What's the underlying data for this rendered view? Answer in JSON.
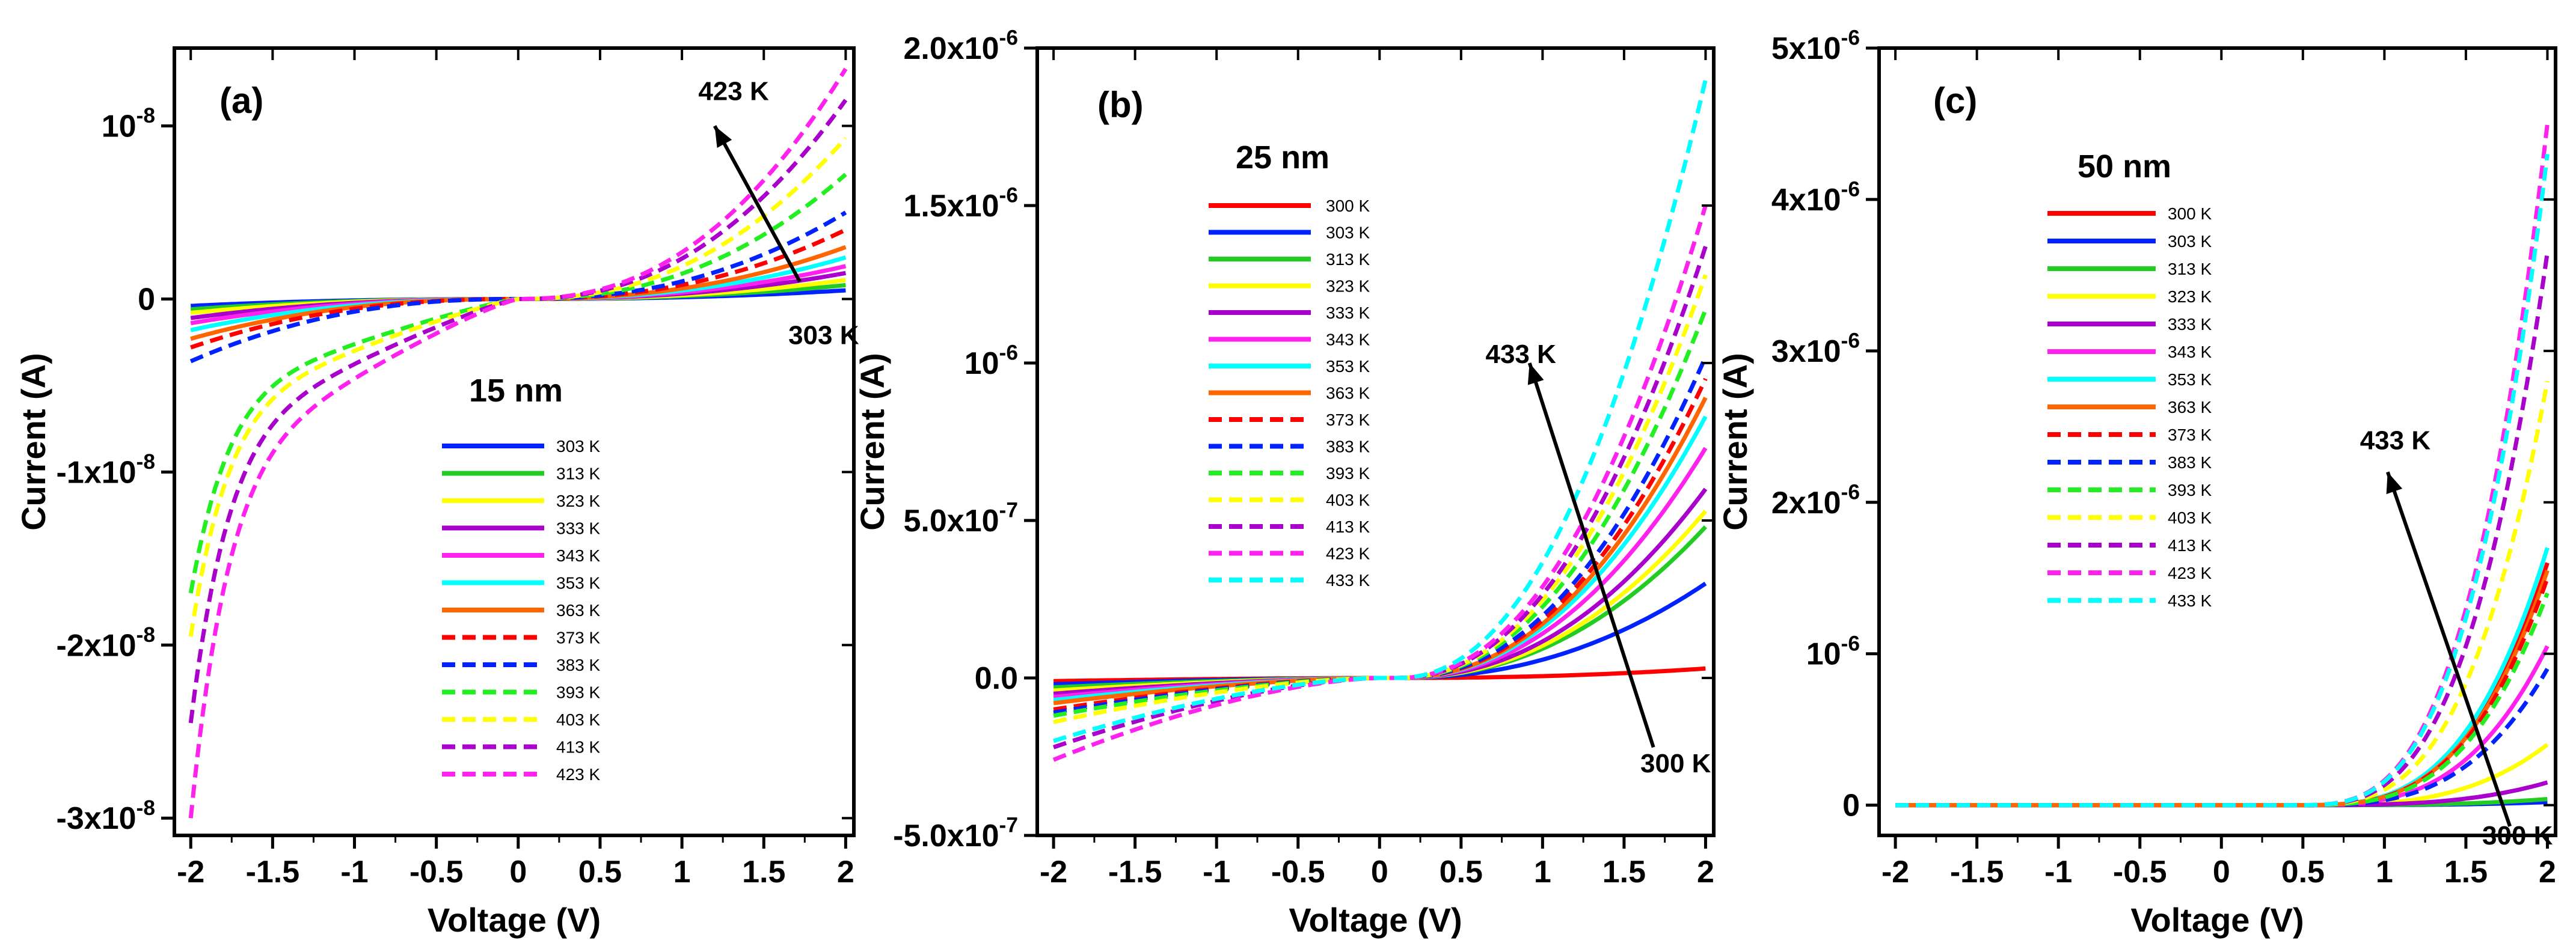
{
  "chart_data": [
    {
      "type": "line",
      "panel_label": "(a)",
      "thickness_label": "15 nm",
      "xlabel": "Voltage (V)",
      "ylabel": "Current (A)",
      "xlim": [
        -2.1,
        2.05
      ],
      "ylim": [
        -3.1e-08,
        1.45e-08
      ],
      "xticks": [
        -2,
        -1.5,
        -1,
        -0.5,
        0,
        0.5,
        1,
        1.5,
        2
      ],
      "xtick_labels": [
        "-2",
        "-1.5",
        "-1",
        "-0.5",
        "0",
        "0.5",
        "1",
        "1.5",
        "2"
      ],
      "yticks": [
        1e-08,
        0,
        -1e-08,
        -2e-08,
        -3e-08
      ],
      "ytick_labels": [
        "10^-8",
        "0",
        "-1x10^-8",
        "-2x10^-8",
        "-3x10^-8"
      ],
      "annotations": [
        {
          "text": "423 K",
          "x": 1.1,
          "y": 1.15e-08
        },
        {
          "text": "303 K",
          "x": 1.65,
          "y": -2.6e-09
        }
      ],
      "arrow": {
        "from": [
          1.72,
          1e-09
        ],
        "to": [
          1.2,
          1e-08
        ]
      },
      "legend": "lower-center",
      "series": [
        {
          "name": "303 K",
          "color": "#0022ff",
          "dash": false,
          "pos_end": 5e-10,
          "neg_end": -4e-10
        },
        {
          "name": "313 K",
          "color": "#22cc22",
          "dash": false,
          "pos_end": 8e-10,
          "neg_end": -6e-10
        },
        {
          "name": "323 K",
          "color": "#ffff00",
          "dash": false,
          "pos_end": 1.1e-09,
          "neg_end": -8e-10
        },
        {
          "name": "333 K",
          "color": "#aa00cc",
          "dash": false,
          "pos_end": 1.5e-09,
          "neg_end": -1.1e-09
        },
        {
          "name": "343 K",
          "color": "#ff22ee",
          "dash": false,
          "pos_end": 1.9e-09,
          "neg_end": -1.4e-09
        },
        {
          "name": "353 K",
          "color": "#00ffff",
          "dash": false,
          "pos_end": 2.4e-09,
          "neg_end": -1.8e-09
        },
        {
          "name": "363 K",
          "color": "#ff6600",
          "dash": false,
          "pos_end": 3e-09,
          "neg_end": -2.3e-09
        },
        {
          "name": "373 K",
          "color": "#ff0000",
          "dash": true,
          "pos_end": 4e-09,
          "neg_end": -2.8e-09
        },
        {
          "name": "383 K",
          "color": "#0022ff",
          "dash": true,
          "pos_end": 5e-09,
          "neg_end": -3.6e-09
        },
        {
          "name": "393 K",
          "color": "#22ee22",
          "dash": true,
          "pos_end": 7.2e-09,
          "neg_end": -1.7e-08
        },
        {
          "name": "403 K",
          "color": "#ffff00",
          "dash": true,
          "pos_end": 9.3e-09,
          "neg_end": -1.95e-08
        },
        {
          "name": "413 K",
          "color": "#aa00cc",
          "dash": true,
          "pos_end": 1.15e-08,
          "neg_end": -2.45e-08
        },
        {
          "name": "423 K",
          "color": "#ff22ee",
          "dash": true,
          "pos_end": 1.33e-08,
          "neg_end": -3e-08
        }
      ]
    },
    {
      "type": "line",
      "panel_label": "(b)",
      "thickness_label": "25 nm",
      "xlabel": "Voltage (V)",
      "ylabel": "Current (A)",
      "xlim": [
        -2.1,
        2.05
      ],
      "ylim": [
        -5e-07,
        2e-06
      ],
      "xticks": [
        -2,
        -1.5,
        -1,
        -0.5,
        0,
        0.5,
        1,
        1.5,
        2
      ],
      "xtick_labels": [
        "-2",
        "-1.5",
        "-1",
        "-0.5",
        "0",
        "0.5",
        "1",
        "1.5",
        "2"
      ],
      "yticks": [
        2e-06,
        1.5e-06,
        1e-06,
        5e-07,
        0,
        -5e-07
      ],
      "ytick_labels": [
        "2.0x10^-6",
        "1.5x10^-6",
        "10^-6",
        "5.0x10^-7",
        "0.0",
        "-5.0x10^-7"
      ],
      "annotations": [
        {
          "text": "433 K",
          "x": 0.65,
          "y": 1e-06
        },
        {
          "text": "300 K",
          "x": 1.6,
          "y": -3e-07
        }
      ],
      "arrow": {
        "from": [
          1.68,
          -2.2e-07
        ],
        "to": [
          0.92,
          1e-06
        ]
      },
      "legend": "top-left",
      "series": [
        {
          "name": "300 K",
          "color": "#ff0000",
          "dash": false,
          "pos_end": 3e-08,
          "neg_end": -1e-08
        },
        {
          "name": "303 K",
          "color": "#0022ff",
          "dash": false,
          "pos_end": 3e-07,
          "neg_end": -2e-08
        },
        {
          "name": "313 K",
          "color": "#22cc22",
          "dash": false,
          "pos_end": 4.8e-07,
          "neg_end": -3e-08
        },
        {
          "name": "323 K",
          "color": "#ffff00",
          "dash": false,
          "pos_end": 5.3e-07,
          "neg_end": -4e-08
        },
        {
          "name": "333 K",
          "color": "#aa00cc",
          "dash": false,
          "pos_end": 6e-07,
          "neg_end": -5e-08
        },
        {
          "name": "343 K",
          "color": "#ff22ee",
          "dash": false,
          "pos_end": 7.3e-07,
          "neg_end": -6e-08
        },
        {
          "name": "353 K",
          "color": "#00ffff",
          "dash": false,
          "pos_end": 8.3e-07,
          "neg_end": -7e-08
        },
        {
          "name": "363 K",
          "color": "#ff6600",
          "dash": false,
          "pos_end": 8.9e-07,
          "neg_end": -8e-08
        },
        {
          "name": "373 K",
          "color": "#ff0000",
          "dash": true,
          "pos_end": 9.5e-07,
          "neg_end": -1e-07
        },
        {
          "name": "383 K",
          "color": "#0022ff",
          "dash": true,
          "pos_end": 1.02e-06,
          "neg_end": -1.1e-07
        },
        {
          "name": "393 K",
          "color": "#22ee22",
          "dash": true,
          "pos_end": 1.17e-06,
          "neg_end": -1.2e-07
        },
        {
          "name": "403 K",
          "color": "#ffff00",
          "dash": true,
          "pos_end": 1.28e-06,
          "neg_end": -1.4e-07
        },
        {
          "name": "413 K",
          "color": "#aa00cc",
          "dash": true,
          "pos_end": 1.37e-06,
          "neg_end": -2.2e-07
        },
        {
          "name": "423 K",
          "color": "#ff22ee",
          "dash": true,
          "pos_end": 1.5e-06,
          "neg_end": -2.6e-07
        },
        {
          "name": "433 K",
          "color": "#00ffff",
          "dash": true,
          "pos_end": 1.9e-06,
          "neg_end": -2e-07
        }
      ]
    },
    {
      "type": "line",
      "panel_label": "(c)",
      "thickness_label": "50 nm",
      "xlabel": "Voltage (V)",
      "ylabel": "Current (A)",
      "xlim": [
        -2.1,
        2.05
      ],
      "ylim": [
        -2e-07,
        5e-06
      ],
      "xticks": [
        -2,
        -1.5,
        -1,
        -0.5,
        0,
        0.5,
        1,
        1.5,
        2
      ],
      "xtick_labels": [
        "-2",
        "-1.5",
        "-1",
        "-0.5",
        "0",
        "0.5",
        "1",
        "1.5",
        "2"
      ],
      "yticks": [
        5e-06,
        4e-06,
        3e-06,
        2e-06,
        1e-06,
        0
      ],
      "ytick_labels": [
        "5x10^-6",
        "4x10^-6",
        "3x10^-6",
        "2x10^-6",
        "10^-6",
        "0"
      ],
      "annotations": [
        {
          "text": "433 K",
          "x": 0.85,
          "y": 2.35e-06
        },
        {
          "text": "300 K",
          "x": 1.6,
          "y": -2.6e-07
        }
      ],
      "arrow": {
        "from": [
          1.77,
          -1.4e-07
        ],
        "to": [
          1.02,
          2.2e-06
        ]
      },
      "legend": "top-left",
      "series": [
        {
          "name": "300 K",
          "color": "#ff0000",
          "dash": false,
          "pos_end": 1.6e-06,
          "neg_end": 0
        },
        {
          "name": "303 K",
          "color": "#0022ff",
          "dash": false,
          "pos_end": 2e-08,
          "neg_end": 0
        },
        {
          "name": "313 K",
          "color": "#22cc22",
          "dash": false,
          "pos_end": 4e-08,
          "neg_end": 0
        },
        {
          "name": "323 K",
          "color": "#ffff00",
          "dash": false,
          "pos_end": 4e-07,
          "neg_end": 0
        },
        {
          "name": "333 K",
          "color": "#aa00cc",
          "dash": false,
          "pos_end": 1.5e-07,
          "neg_end": 0
        },
        {
          "name": "343 K",
          "color": "#ff22ee",
          "dash": false,
          "pos_end": 1.05e-06,
          "neg_end": 0
        },
        {
          "name": "353 K",
          "color": "#00ffff",
          "dash": false,
          "pos_end": 1.7e-06,
          "neg_end": 0
        },
        {
          "name": "363 K",
          "color": "#ff6600",
          "dash": false,
          "pos_end": 1.55e-06,
          "neg_end": 0
        },
        {
          "name": "373 K",
          "color": "#ff0000",
          "dash": true,
          "pos_end": 1.5e-06,
          "neg_end": 0
        },
        {
          "name": "383 K",
          "color": "#0022ff",
          "dash": true,
          "pos_end": 9e-07,
          "neg_end": 0
        },
        {
          "name": "393 K",
          "color": "#22ee22",
          "dash": true,
          "pos_end": 1.4e-06,
          "neg_end": 0
        },
        {
          "name": "403 K",
          "color": "#ffff00",
          "dash": true,
          "pos_end": 2.8e-06,
          "neg_end": 0
        },
        {
          "name": "413 K",
          "color": "#aa00cc",
          "dash": true,
          "pos_end": 3.65e-06,
          "neg_end": 0
        },
        {
          "name": "423 K",
          "color": "#ff22ee",
          "dash": true,
          "pos_end": 4.5e-06,
          "neg_end": 0
        },
        {
          "name": "433 K",
          "color": "#00ffff",
          "dash": true,
          "pos_end": 4.3e-06,
          "neg_end": 0
        }
      ]
    }
  ]
}
